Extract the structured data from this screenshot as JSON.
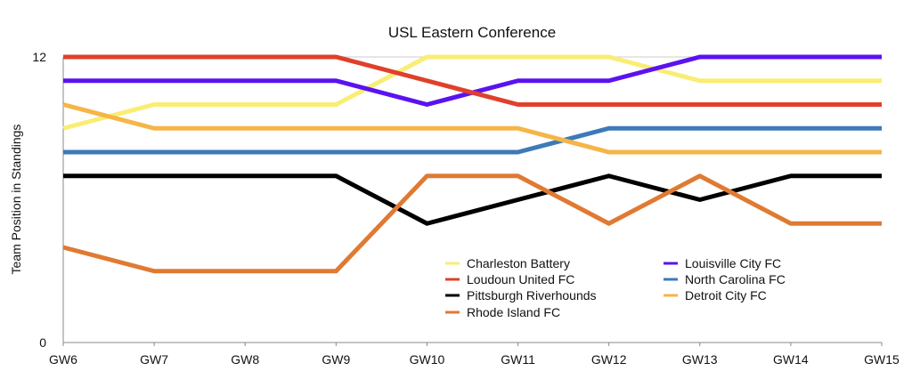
{
  "chart_data": {
    "type": "line",
    "title": "USL Eastern Conference",
    "xlabel": "",
    "ylabel": "Team Position in Standings",
    "categories": [
      "GW6",
      "GW7",
      "GW8",
      "GW9",
      "GW10",
      "GW11",
      "GW12",
      "GW13",
      "GW14",
      "GW15"
    ],
    "ylim": [
      0,
      12
    ],
    "yticks": [
      "0",
      "12"
    ],
    "grid": "top line only",
    "legend_position": "bottom-center",
    "series": [
      {
        "name": "Charleston Battery",
        "color": "#f9ed74",
        "values": [
          9,
          10,
          10,
          10,
          12,
          12,
          12,
          11,
          11,
          11
        ]
      },
      {
        "name": "Louisville City FC",
        "color": "#5b12f0",
        "values": [
          11,
          11,
          11,
          11,
          10,
          11,
          11,
          12,
          12,
          12
        ]
      },
      {
        "name": "Loudoun United FC",
        "color": "#e0402b",
        "values": [
          12,
          12,
          12,
          12,
          11,
          10,
          10,
          10,
          10,
          10
        ]
      },
      {
        "name": "North Carolina FC",
        "color": "#3d7ab8",
        "values": [
          8,
          8,
          8,
          8,
          8,
          8,
          9,
          9,
          9,
          9
        ]
      },
      {
        "name": "Pittsburgh Riverhounds",
        "color": "#000000",
        "values": [
          7,
          7,
          7,
          7,
          5,
          6,
          7,
          6,
          7,
          7
        ]
      },
      {
        "name": "Detroit City FC",
        "color": "#f5b547",
        "values": [
          10,
          9,
          9,
          9,
          9,
          9,
          8,
          8,
          8,
          8
        ]
      },
      {
        "name": "Rhode Island FC",
        "color": "#e07a32",
        "values": [
          4,
          3,
          3,
          3,
          7,
          7,
          5,
          7,
          5,
          5
        ]
      }
    ]
  }
}
